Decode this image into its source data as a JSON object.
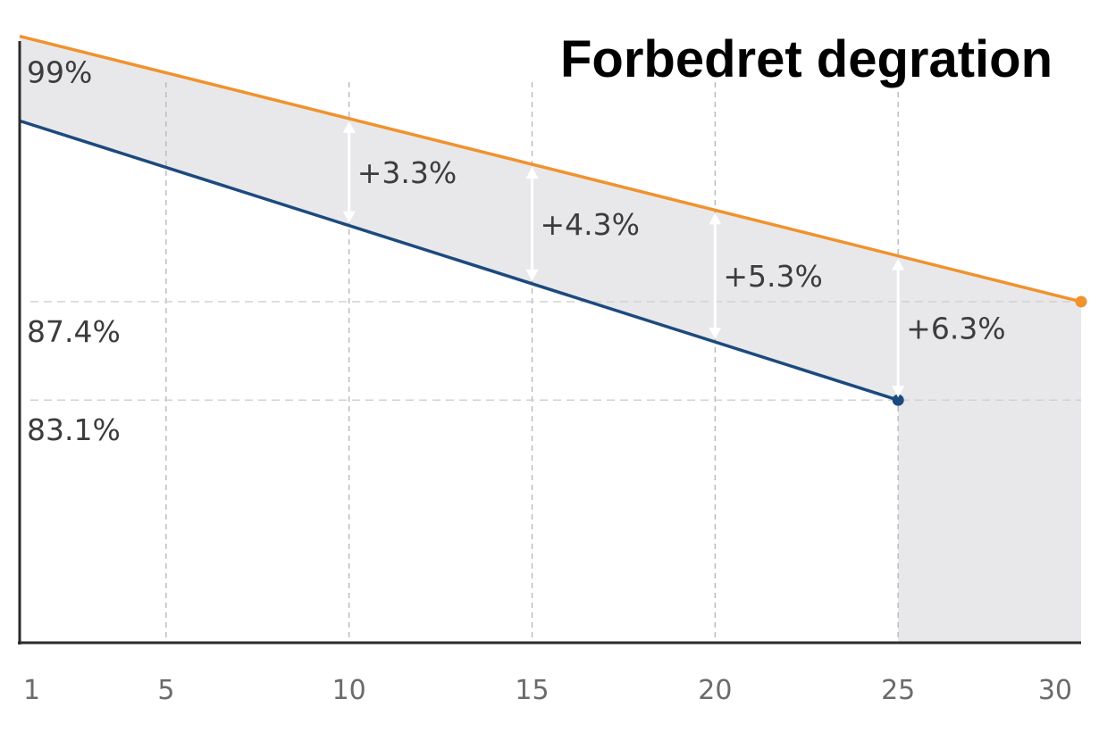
{
  "chart_data": {
    "type": "line",
    "title": "Forbedret degration",
    "xlabel": "",
    "ylabel": "",
    "x_ticks": [
      1,
      5,
      10,
      15,
      20,
      25,
      30
    ],
    "xlim": [
      1,
      30
    ],
    "ylim": [
      72.5,
      99.8
    ],
    "series": [
      {
        "color": "#f0922e",
        "x": [
          1,
          30
        ],
        "y": [
          99,
          87.4
        ]
      },
      {
        "color": "#1c4a7e",
        "x": [
          1,
          25
        ],
        "y": [
          95.3,
          83.1
        ]
      }
    ],
    "y_annotations": [
      {
        "value": 99,
        "label": "99%"
      },
      {
        "value": 87.4,
        "label": "87.4%"
      },
      {
        "value": 83.1,
        "label": "83.1%"
      }
    ],
    "gaps": [
      {
        "x": 10,
        "label": "+3.3%"
      },
      {
        "x": 15,
        "label": "+4.3%"
      },
      {
        "x": 20,
        "label": "+5.3%"
      },
      {
        "x": 25,
        "label": "+6.3%"
      }
    ],
    "grid": true,
    "fill_color": "#e8e8eb"
  }
}
